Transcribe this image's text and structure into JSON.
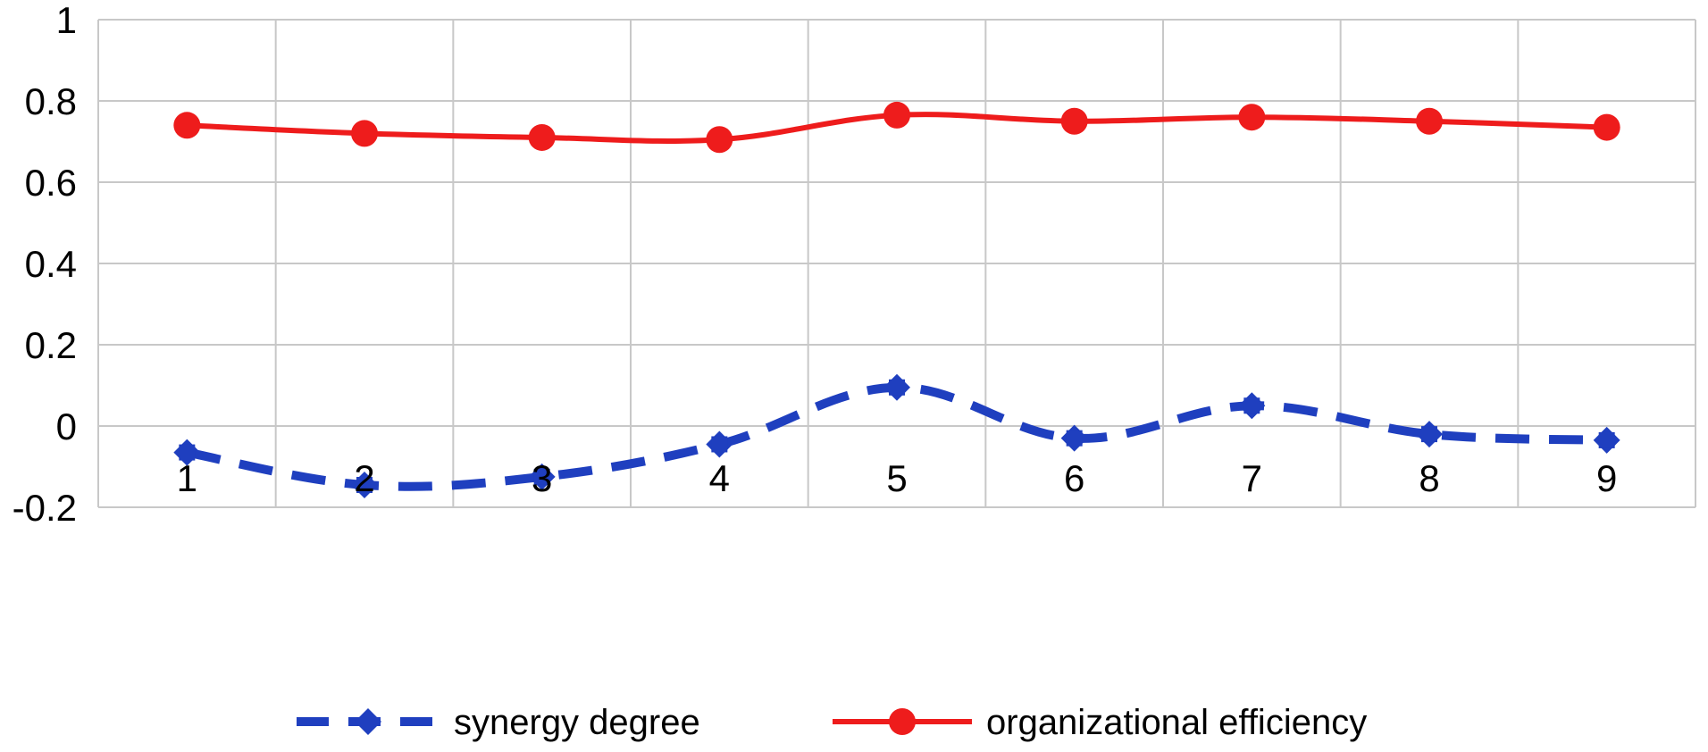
{
  "chart_data": {
    "type": "line",
    "title": "",
    "xlabel": "",
    "ylabel": "",
    "x": [
      1,
      2,
      3,
      4,
      5,
      6,
      7,
      8,
      9
    ],
    "ylim": [
      -0.2,
      1
    ],
    "yticks": [
      -0.2,
      0,
      0.2,
      0.4,
      0.6,
      0.8,
      1
    ],
    "yticklabels": [
      "-0.2",
      "0",
      "0.2",
      "0.4",
      "0.6",
      "0.8",
      "1"
    ],
    "xticklabels": [
      "1",
      "2",
      "3",
      "4",
      "5",
      "6",
      "7",
      "8",
      "9"
    ],
    "xtick_position": "inside-plot-below-zero",
    "grid": true,
    "legend_position": "bottom",
    "series": [
      {
        "name": "synergy degree",
        "values": [
          -0.065,
          -0.145,
          -0.125,
          -0.045,
          0.095,
          -0.03,
          0.05,
          -0.02,
          -0.035
        ],
        "color": "#1f3fbf",
        "line_style": "dashed",
        "marker": "diamond",
        "smooth": true
      },
      {
        "name": "organizational efficiency",
        "values": [
          0.74,
          0.72,
          0.71,
          0.705,
          0.765,
          0.75,
          0.76,
          0.75,
          0.735
        ],
        "color": "#ee1c1c",
        "line_style": "solid",
        "marker": "circle",
        "smooth": true
      }
    ],
    "grid_color": "#c8c8c8"
  }
}
